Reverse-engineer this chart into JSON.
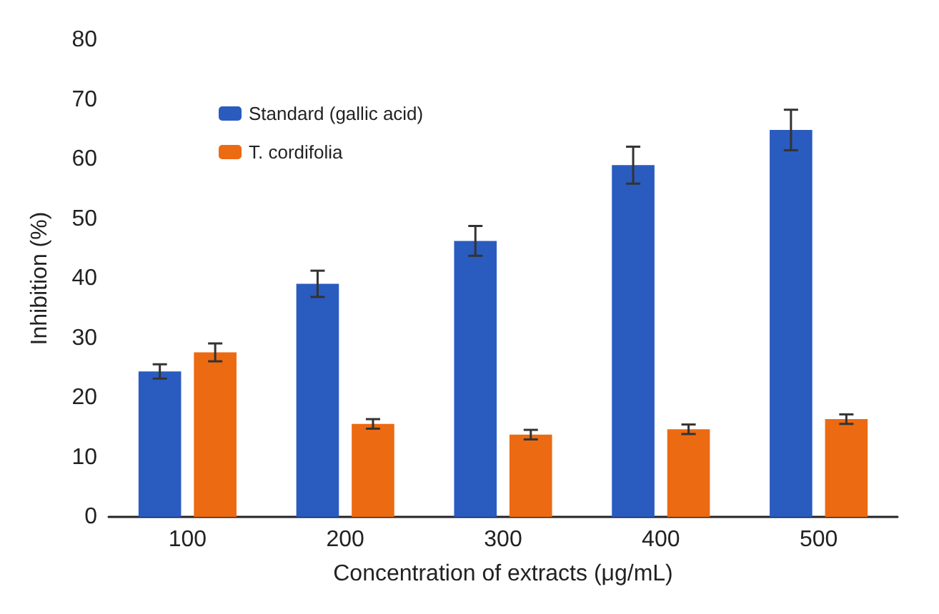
{
  "chart_data": {
    "type": "bar",
    "xlabel": "Concentration of extracts (μg/mL)",
    "ylabel": "Inhibition (%)",
    "categories": [
      "100",
      "200",
      "300",
      "400",
      "500"
    ],
    "series": [
      {
        "name": "Standard (gallic acid)",
        "color": "#2a5bbf",
        "values": [
          24.4,
          39.1,
          46.3,
          59.0,
          64.9
        ],
        "errors": [
          1.2,
          2.2,
          2.5,
          3.1,
          3.4
        ]
      },
      {
        "name": "T. cordifolia",
        "color": "#ec6a12",
        "values": [
          27.6,
          15.6,
          13.8,
          14.7,
          16.4
        ],
        "errors": [
          1.5,
          0.8,
          0.8,
          0.8,
          0.8
        ]
      }
    ],
    "ylim": [
      0,
      80
    ],
    "yticks": [
      0,
      10,
      20,
      30,
      40,
      50,
      60,
      70,
      80
    ],
    "grid": false,
    "legend": "top left"
  }
}
